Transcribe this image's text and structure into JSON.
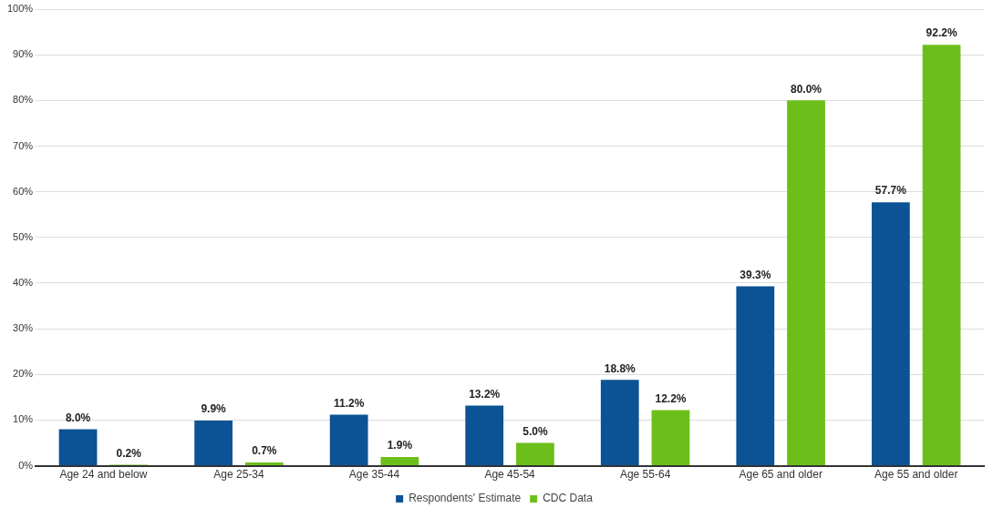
{
  "chart_data": {
    "type": "bar",
    "categories": [
      "Age 24 and below",
      "Age 25-34",
      "Age 35-44",
      "Age 45-54",
      "Age 55-64",
      "Age 65 and older",
      "Age 55 and older"
    ],
    "series": [
      {
        "name": "Respondents' Estimate",
        "color": "#0b5394",
        "values": [
          8.0,
          9.9,
          11.2,
          13.2,
          18.8,
          39.3,
          57.7
        ],
        "value_labels": [
          "8.0%",
          "9.9%",
          "11.2%",
          "13.2%",
          "18.8%",
          "39.3%",
          "57.7%"
        ]
      },
      {
        "name": "CDC Data",
        "color": "#6cbf1a",
        "values": [
          0.2,
          0.7,
          1.9,
          5.0,
          12.2,
          80.0,
          92.2
        ],
        "value_labels": [
          "0.2%",
          "0.7%",
          "1.9%",
          "5.0%",
          "12.2%",
          "80.0%",
          "92.2%"
        ]
      }
    ],
    "ylim": [
      0,
      100
    ],
    "yticks": [
      {
        "value": 0,
        "label": "0%"
      },
      {
        "value": 10,
        "label": "10%"
      },
      {
        "value": 20,
        "label": "20%"
      },
      {
        "value": 30,
        "label": "30%"
      },
      {
        "value": 40,
        "label": "40%"
      },
      {
        "value": 50,
        "label": "50%"
      },
      {
        "value": 60,
        "label": "60%"
      },
      {
        "value": 70,
        "label": "70%"
      },
      {
        "value": 80,
        "label": "80%"
      },
      {
        "value": 90,
        "label": "90%"
      },
      {
        "value": 100,
        "label": "100%"
      }
    ],
    "grid": "y",
    "legend": "bottom"
  }
}
